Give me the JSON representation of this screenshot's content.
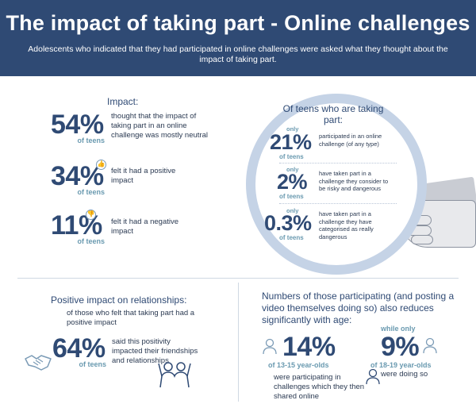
{
  "header": {
    "title": "The impact of taking part - Online challenges",
    "subtitle": "Adolescents who indicated that they had participated in online challenges were asked what they thought about the impact of taking part."
  },
  "impact": {
    "heading": "Impact:",
    "unit": "of teens",
    "items": [
      {
        "value": "54%",
        "text": "thought that the impact of taking part in an online challenge was mostly neutral",
        "icon": ""
      },
      {
        "value": "34%",
        "text": "felt it had a positive impact",
        "icon": "thumbs-up-icon"
      },
      {
        "value": "11%",
        "text": "felt it had a negative impact",
        "icon": "thumbs-down-icon"
      }
    ]
  },
  "lens": {
    "heading": "Of teens who are taking part:",
    "only": "only",
    "unit": "of teens",
    "items": [
      {
        "value": "21%",
        "text": "participated in an online challenge (of any type)"
      },
      {
        "value": "2%",
        "text": "have taken part in a challenge they consider to be risky and dangerous"
      },
      {
        "value": "0.3%",
        "text": "have taken part in a challenge they have categorised as really dangerous"
      }
    ]
  },
  "relationships": {
    "heading": "Positive impact on relationships:",
    "sub": "of those who felt that taking part had a positive impact",
    "value": "64%",
    "unit": "of teens",
    "text": "said this positivity impacted their friendships and relationships"
  },
  "age": {
    "heading": "Numbers of those participating (and posting a video themselves doing so) also reduces significantly with age:",
    "young": {
      "value": "14%",
      "unit": "of 13-15 year-olds",
      "text": "were participating in challenges which they then shared online"
    },
    "old": {
      "lead": "while only",
      "value": "9%",
      "unit": "of 18-19 year-olds",
      "text": "were doing so"
    }
  },
  "colors": {
    "navy": "#2f4a74",
    "teal": "#6a9ab0",
    "lens": "#c5d3e6"
  }
}
